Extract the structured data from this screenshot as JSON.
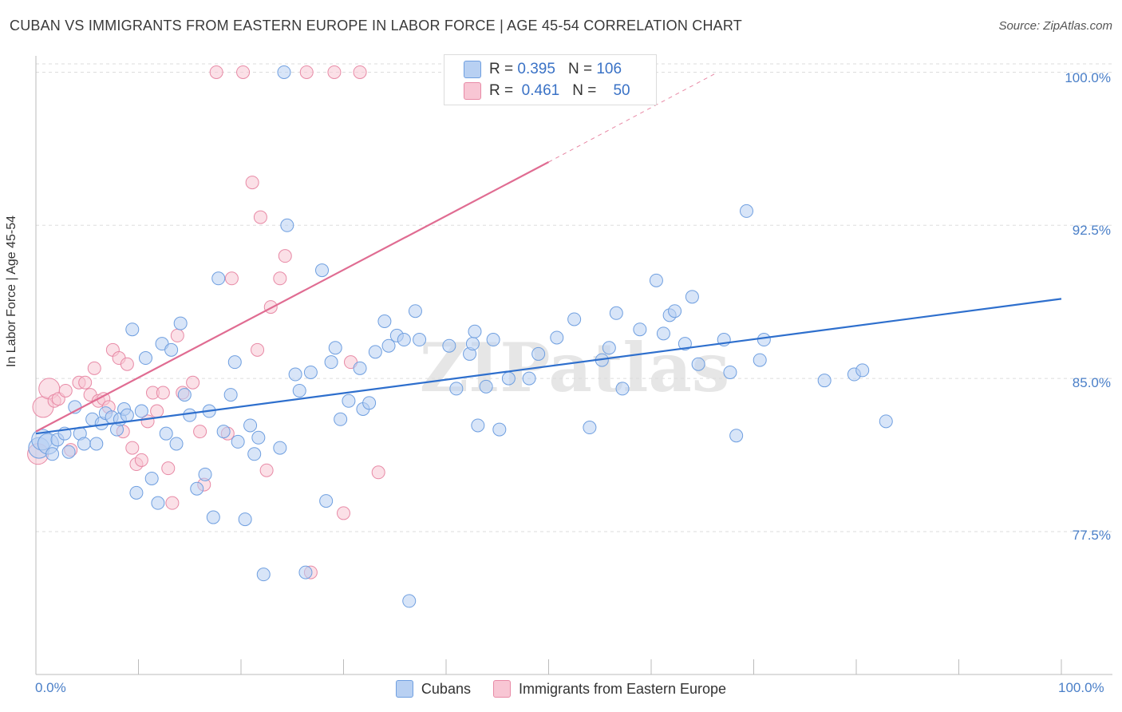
{
  "title": "CUBAN VS IMMIGRANTS FROM EASTERN EUROPE IN LABOR FORCE | AGE 45-54 CORRELATION CHART",
  "source": "Source: ZipAtlas.com",
  "watermark": "ZIPatlas",
  "legend": {
    "r_label": "R =",
    "n_label": "N =",
    "rows": [
      {
        "r": "0.395",
        "n": "106"
      },
      {
        "r": "0.461",
        "n": "50"
      }
    ]
  },
  "colors": {
    "cubans_fill": "#b8d0f2",
    "cubans_stroke": "#6f9fe0",
    "cubans_line": "#2e6fcd",
    "imm_fill": "#f8c6d4",
    "imm_stroke": "#e88aa6",
    "imm_line": "#e06c92",
    "grid": "#dddddd",
    "tick_text": "#4a7fc8"
  },
  "chart_data": {
    "type": "scatter",
    "title": "CUBAN VS IMMIGRANTS FROM EASTERN EUROPE IN LABOR FORCE | AGE 45-54 CORRELATION CHART",
    "xlabel": "",
    "ylabel": "In Labor Force | Age 45-54",
    "xlim": [
      0,
      100
    ],
    "ylim": [
      70.5,
      100.8
    ],
    "x_tick_labels": [
      "0.0%",
      "100.0%"
    ],
    "y_ticks": [
      77.5,
      85.0,
      92.5,
      100.0
    ],
    "y_tick_labels": [
      "77.5%",
      "85.0%",
      "92.5%",
      "100.0%"
    ],
    "grid": true,
    "legend_position": "top-center",
    "series": [
      {
        "name": "Cubans",
        "r": 0.395,
        "n": 106,
        "trend": {
          "x0": 0,
          "y0": 82.3,
          "x1": 100,
          "y1": 88.9
        },
        "points": [
          [
            0.3,
            81.6
          ],
          [
            0.6,
            82.0
          ],
          [
            1.2,
            81.8
          ],
          [
            1.6,
            81.3
          ],
          [
            2.1,
            82.0
          ],
          [
            2.8,
            82.3
          ],
          [
            3.2,
            81.4
          ],
          [
            3.8,
            83.6
          ],
          [
            4.3,
            82.3
          ],
          [
            4.7,
            81.8
          ],
          [
            5.5,
            83.0
          ],
          [
            5.9,
            81.8
          ],
          [
            6.4,
            82.8
          ],
          [
            6.8,
            83.3
          ],
          [
            7.4,
            83.1
          ],
          [
            7.9,
            82.5
          ],
          [
            8.2,
            83.0
          ],
          [
            8.6,
            83.5
          ],
          [
            8.9,
            83.2
          ],
          [
            9.4,
            87.4
          ],
          [
            9.8,
            79.4
          ],
          [
            10.3,
            83.4
          ],
          [
            10.7,
            86.0
          ],
          [
            11.3,
            80.1
          ],
          [
            11.9,
            78.9
          ],
          [
            12.3,
            86.7
          ],
          [
            12.7,
            82.3
          ],
          [
            13.2,
            86.4
          ],
          [
            13.7,
            81.8
          ],
          [
            14.1,
            87.7
          ],
          [
            14.5,
            84.2
          ],
          [
            15.0,
            83.2
          ],
          [
            15.7,
            79.6
          ],
          [
            16.5,
            80.3
          ],
          [
            16.9,
            83.4
          ],
          [
            17.3,
            78.2
          ],
          [
            17.8,
            89.9
          ],
          [
            18.3,
            82.4
          ],
          [
            19.0,
            84.2
          ],
          [
            19.4,
            85.8
          ],
          [
            19.7,
            81.9
          ],
          [
            20.4,
            78.1
          ],
          [
            20.9,
            82.7
          ],
          [
            21.3,
            81.3
          ],
          [
            21.7,
            82.1
          ],
          [
            22.2,
            75.4
          ],
          [
            23.8,
            81.6
          ],
          [
            24.2,
            100.0
          ],
          [
            24.5,
            92.5
          ],
          [
            25.3,
            85.2
          ],
          [
            25.7,
            84.4
          ],
          [
            26.3,
            75.5
          ],
          [
            26.8,
            85.3
          ],
          [
            27.9,
            90.3
          ],
          [
            28.3,
            79.0
          ],
          [
            28.8,
            85.8
          ],
          [
            29.2,
            86.5
          ],
          [
            29.7,
            83.0
          ],
          [
            30.5,
            83.9
          ],
          [
            31.6,
            85.5
          ],
          [
            31.9,
            83.5
          ],
          [
            32.5,
            83.8
          ],
          [
            33.1,
            86.3
          ],
          [
            34.0,
            87.8
          ],
          [
            34.4,
            86.6
          ],
          [
            35.2,
            87.1
          ],
          [
            35.9,
            86.9
          ],
          [
            36.4,
            74.1
          ],
          [
            37.0,
            88.3
          ],
          [
            37.4,
            86.9
          ],
          [
            40.3,
            86.6
          ],
          [
            41.0,
            84.5
          ],
          [
            42.3,
            86.2
          ],
          [
            42.6,
            86.7
          ],
          [
            42.8,
            87.3
          ],
          [
            43.1,
            82.7
          ],
          [
            43.9,
            84.6
          ],
          [
            44.6,
            86.9
          ],
          [
            45.2,
            82.5
          ],
          [
            46.1,
            85.0
          ],
          [
            48.1,
            85.0
          ],
          [
            49.0,
            86.2
          ],
          [
            50.8,
            87.0
          ],
          [
            52.5,
            87.9
          ],
          [
            54.0,
            82.6
          ],
          [
            55.2,
            85.9
          ],
          [
            55.9,
            86.5
          ],
          [
            56.6,
            88.2
          ],
          [
            57.2,
            84.5
          ],
          [
            58.9,
            87.4
          ],
          [
            60.5,
            89.8
          ],
          [
            61.2,
            87.2
          ],
          [
            61.8,
            88.1
          ],
          [
            62.3,
            88.3
          ],
          [
            63.3,
            86.7
          ],
          [
            64.0,
            89.0
          ],
          [
            64.6,
            85.7
          ],
          [
            67.1,
            86.9
          ],
          [
            67.7,
            85.3
          ],
          [
            68.3,
            82.2
          ],
          [
            69.3,
            93.2
          ],
          [
            70.6,
            85.9
          ],
          [
            71.0,
            86.9
          ],
          [
            76.9,
            84.9
          ],
          [
            79.8,
            85.2
          ],
          [
            80.6,
            85.4
          ],
          [
            82.9,
            82.9
          ]
        ]
      },
      {
        "name": "Immigrants from Eastern Europe",
        "r": 0.461,
        "n": 50,
        "trend": {
          "x0": 0,
          "y0": 82.4,
          "x1": 50,
          "y1": 95.6
        },
        "trend_ext": {
          "x0": 50,
          "y0": 95.6,
          "x1": 66.5,
          "y1": 100.0
        },
        "points": [
          [
            0.2,
            81.3
          ],
          [
            0.7,
            83.6
          ],
          [
            1.3,
            84.5
          ],
          [
            1.8,
            83.9
          ],
          [
            2.2,
            84.0
          ],
          [
            2.9,
            84.4
          ],
          [
            3.4,
            81.5
          ],
          [
            4.2,
            84.8
          ],
          [
            4.8,
            84.8
          ],
          [
            5.3,
            84.2
          ],
          [
            5.7,
            85.5
          ],
          [
            6.1,
            83.9
          ],
          [
            6.6,
            84.0
          ],
          [
            7.1,
            83.6
          ],
          [
            7.5,
            86.4
          ],
          [
            8.1,
            86.0
          ],
          [
            8.5,
            82.4
          ],
          [
            8.9,
            85.7
          ],
          [
            9.4,
            81.6
          ],
          [
            9.8,
            80.8
          ],
          [
            10.3,
            81.0
          ],
          [
            10.9,
            82.9
          ],
          [
            11.4,
            84.3
          ],
          [
            11.8,
            83.4
          ],
          [
            12.4,
            84.3
          ],
          [
            12.9,
            80.6
          ],
          [
            13.3,
            78.9
          ],
          [
            13.8,
            87.1
          ],
          [
            14.3,
            84.3
          ],
          [
            15.3,
            84.8
          ],
          [
            16.0,
            82.4
          ],
          [
            16.4,
            79.8
          ],
          [
            17.6,
            100.0
          ],
          [
            18.7,
            82.3
          ],
          [
            19.1,
            89.9
          ],
          [
            20.2,
            100.0
          ],
          [
            21.1,
            94.6
          ],
          [
            21.6,
            86.4
          ],
          [
            21.9,
            92.9
          ],
          [
            22.5,
            80.5
          ],
          [
            22.9,
            88.5
          ],
          [
            23.8,
            89.9
          ],
          [
            24.3,
            91.0
          ],
          [
            26.4,
            100.0
          ],
          [
            26.8,
            75.5
          ],
          [
            29.1,
            100.0
          ],
          [
            30.0,
            78.4
          ],
          [
            30.7,
            85.8
          ],
          [
            31.6,
            100.0
          ],
          [
            33.4,
            80.4
          ]
        ]
      }
    ]
  }
}
